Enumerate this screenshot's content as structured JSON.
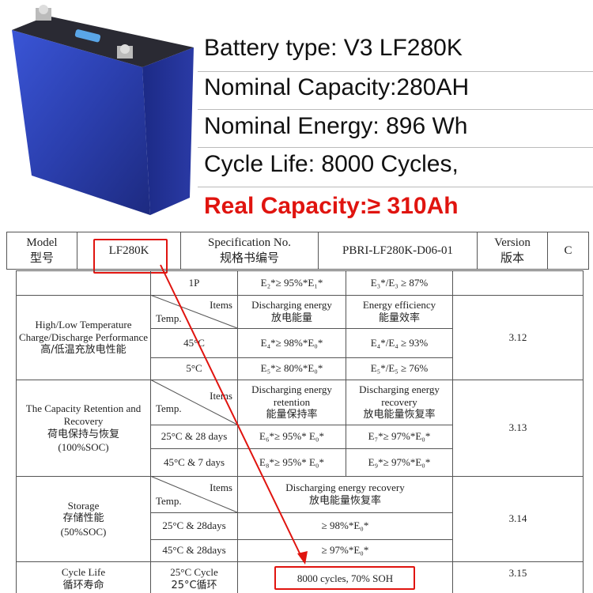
{
  "specs": {
    "battery_type": "Battery type: V3 LF280K",
    "nominal_capacity": "Nominal Capacity:280AH",
    "nominal_energy": "Nominal Energy: 896 Wh",
    "cycle_life": "Cycle Life: 8000 Cycles,",
    "real_capacity": "Real Capacity:≥ 310Ah"
  },
  "colors": {
    "highlight": "#e0140f",
    "battery_blue": "#2b3fae"
  },
  "header": {
    "model_en": "Model",
    "model_zh": "型号",
    "model_value": "LF280K",
    "spec_en": "Specification  No.",
    "spec_zh": "规格书编号",
    "spec_value": "PBRI-LF280K-D06-01",
    "version_en": "Version",
    "version_zh": "版本",
    "version_value": "C"
  },
  "table": {
    "items": "Items",
    "temp": "Temp.",
    "r1": {
      "cond": "1P",
      "a": "E₂*≥ 95%*E₁*",
      "b": "E₃*/E₃ ≥ 87%"
    },
    "s1": {
      "title_en": "High/Low Temperature Charge/Discharge Performance",
      "title_zh": "高/低温充放电性能",
      "col_a_en": "Discharging energy",
      "col_a_zh": "放电能量",
      "col_b_en": "Energy efficiency",
      "col_b_zh": "能量效率",
      "ref": "3.12",
      "rows": [
        {
          "cond": "45°C",
          "a": "E₄*≥ 98%*E₀*",
          "b": "E₄*/E₄ ≥ 93%"
        },
        {
          "cond": "5°C",
          "a": "E₅*≥ 80%*E₀*",
          "b": "E₅*/E₅ ≥ 76%"
        }
      ]
    },
    "s2": {
      "title_en": "The Capacity Retention and Recovery",
      "title_zh": "荷电保持与恢复",
      "soc": "(100%SOC)",
      "col_a_en": "Discharging energy retention",
      "col_a_zh": "能量保持率",
      "col_b_en": "Discharging energy recovery",
      "col_b_zh": "放电能量恢复率",
      "ref": "3.13",
      "rows": [
        {
          "cond": "25°C & 28 days",
          "a": "E₆*≥ 95%* E₀*",
          "b": "E₇*≥ 97%*E₀*"
        },
        {
          "cond": "45°C & 7 days",
          "a": "E₈*≥ 95%* E₀*",
          "b": "E₉*≥ 97%*E₀*"
        }
      ]
    },
    "s3": {
      "title_en": "Storage",
      "title_zh": "存储性能",
      "soc": "(50%SOC)",
      "col_en": "Discharging energy recovery",
      "col_zh": "放电能量恢复率",
      "ref": "3.14",
      "rows": [
        {
          "cond": "25°C & 28days",
          "v": "≥ 98%*E₀*"
        },
        {
          "cond": "45°C & 28days",
          "v": "≥ 97%*E₀*"
        }
      ]
    },
    "s4": {
      "title_en": "Cycle Life",
      "title_zh": "循环寿命",
      "cond_en": "25°C Cycle",
      "cond_zh": "25°C循环",
      "value": "8000 cycles, 70% SOH",
      "ref": "3.15"
    }
  }
}
